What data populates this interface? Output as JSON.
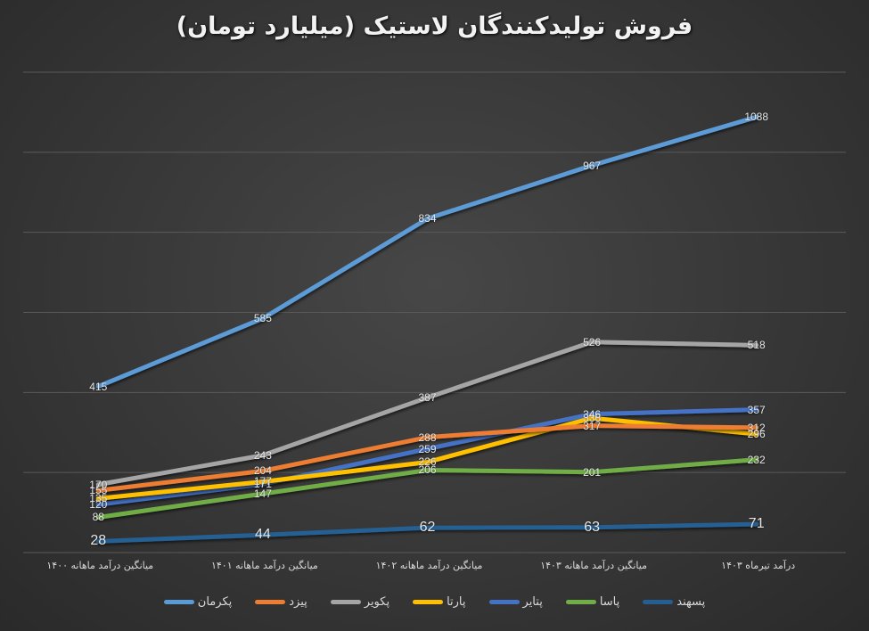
{
  "chart_data": {
    "type": "line",
    "title": "فروش تولیدکنندگان لاستیک (میلیارد تومان)",
    "xlabel": "",
    "ylabel": "",
    "ylim": [
      0,
      1200
    ],
    "grid": true,
    "gridlines": [
      0,
      200,
      400,
      600,
      800,
      1000,
      1200
    ],
    "legend_position": "bottom",
    "categories": [
      "میانگین درآمد ماهانه ۱۴۰۰",
      "میانگین درآمد ماهانه ۱۴۰۱",
      "میانگین درآمد ماهانه ۱۴۰۲",
      "میانگین درآمد ماهانه ۱۴۰۳",
      "درآمد تیرماه ۱۴۰۳"
    ],
    "series": [
      {
        "name": "پکرمان",
        "color": "#5B9BD5",
        "values": [
          415,
          585,
          834,
          967,
          1088
        ]
      },
      {
        "name": "پیزد",
        "color": "#ED7D31",
        "values": [
          155,
          204,
          288,
          317,
          312
        ]
      },
      {
        "name": "پکویر",
        "color": "#A5A5A5",
        "values": [
          170,
          243,
          387,
          526,
          518
        ]
      },
      {
        "name": "پارتا",
        "color": "#FFC000",
        "values": [
          135,
          177,
          226,
          336,
          296
        ]
      },
      {
        "name": "پتایر",
        "color": "#4472C4",
        "values": [
          120,
          171,
          259,
          346,
          357
        ]
      },
      {
        "name": "پاسا",
        "color": "#70AD47",
        "values": [
          88,
          147,
          206,
          201,
          232
        ]
      },
      {
        "name": "پسهند",
        "color": "#255E91",
        "values": [
          28,
          44,
          62,
          63,
          71
        ]
      }
    ]
  }
}
